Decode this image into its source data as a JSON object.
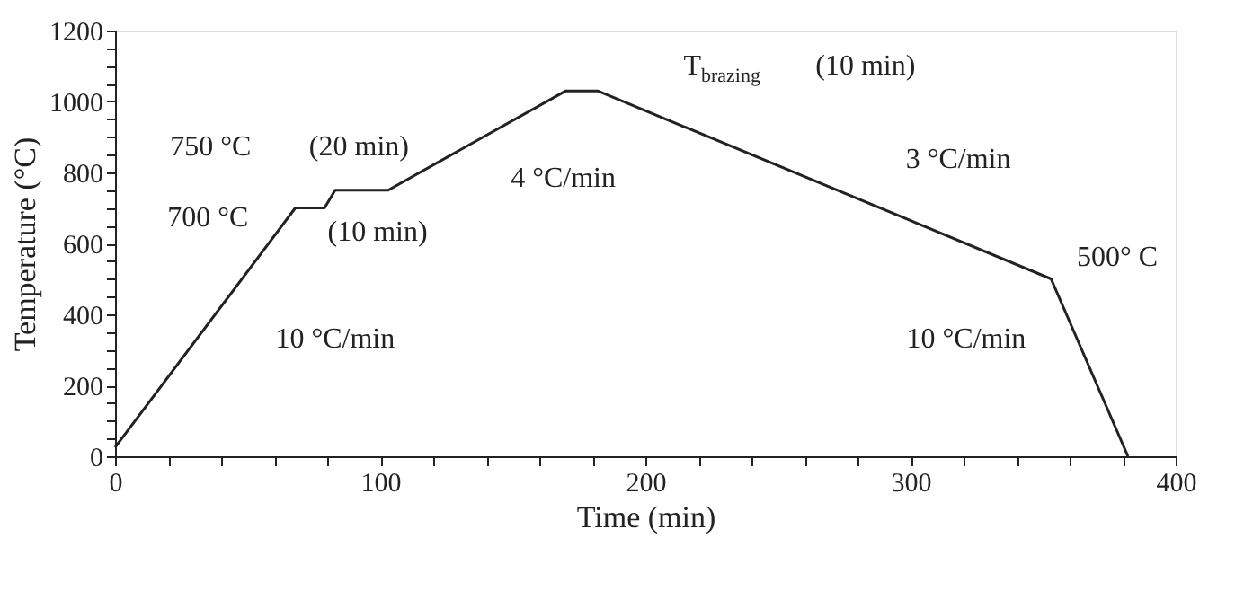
{
  "chart_data": {
    "type": "line",
    "xlabel": "Time (min)",
    "ylabel": "Temperature (°C)",
    "x": [
      0,
      68,
      79,
      83,
      103,
      170,
      182,
      353,
      382
    ],
    "series": [
      {
        "color": "#222222",
        "values": [
          25,
          700,
          700,
          750,
          750,
          1030,
          1030,
          500,
          0
        ]
      }
    ],
    "xlim": [
      0,
      400
    ],
    "ylim": [
      0,
      1200
    ],
    "xticks": [
      0,
      {
        "value": 20,
        "label": null
      },
      {
        "value": 40,
        "label": null
      },
      {
        "value": 60,
        "label": null
      },
      {
        "value": 80,
        "label": null
      },
      100,
      {
        "value": 120,
        "label": null
      },
      {
        "value": 140,
        "label": null
      },
      {
        "value": 160,
        "label": null
      },
      {
        "value": 180,
        "label": null
      },
      200,
      {
        "value": 220,
        "label": null
      },
      {
        "value": 240,
        "label": null
      },
      {
        "value": 260,
        "label": null
      },
      {
        "value": 280,
        "label": null
      },
      300,
      {
        "value": 320,
        "label": null
      },
      {
        "value": 340,
        "label": null
      },
      {
        "value": 360,
        "label": null
      },
      {
        "value": 380,
        "label": null
      },
      400
    ],
    "yticks": [
      0,
      {
        "value": 50,
        "label": null
      },
      {
        "value": 100,
        "label": null
      },
      {
        "value": 150,
        "label": null
      },
      200,
      {
        "value": 250,
        "label": null
      },
      {
        "value": 300,
        "label": null
      },
      {
        "value": 350,
        "label": null
      },
      400,
      {
        "value": 450,
        "label": null
      },
      {
        "value": 500,
        "label": null
      },
      {
        "value": 550,
        "label": null
      },
      600,
      {
        "value": 650,
        "label": null
      },
      {
        "value": 700,
        "label": null
      },
      {
        "value": 750,
        "label": null
      },
      800,
      {
        "value": 850,
        "label": null
      },
      {
        "value": 900,
        "label": null
      },
      {
        "value": 950,
        "label": null
      },
      1000,
      {
        "value": 1050,
        "label": null
      },
      {
        "value": 1100,
        "label": null
      },
      {
        "value": 1150,
        "label": null
      },
      1200
    ],
    "grid": false,
    "marker": "none",
    "line_style": "solid",
    "annotations": [
      "750 °C",
      "(20 min)",
      "700 °C",
      "(10 min)",
      "10 °C/min",
      "4 °C/min",
      "T$_{brazing}$",
      "(10 min)",
      "3 °C/min",
      "500° C",
      "10 °C/min"
    ]
  }
}
